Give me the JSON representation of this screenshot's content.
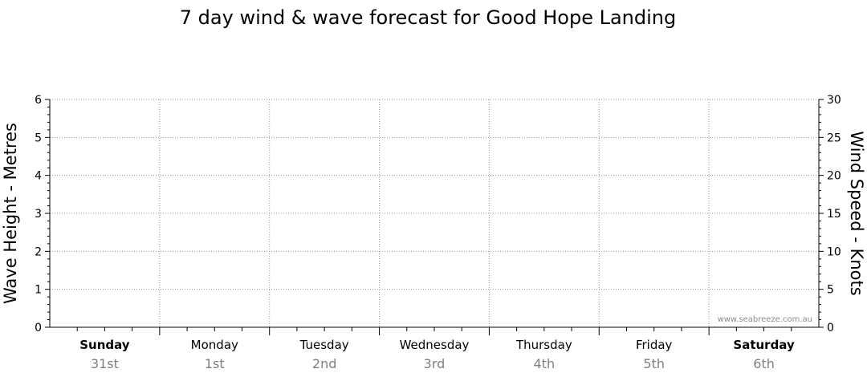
{
  "chart_data": {
    "type": "line",
    "title": "7 day wind & wave forecast for Good Hope Landing",
    "left_axis": {
      "label": "Wave Height - Metres",
      "ylim": [
        0,
        6
      ],
      "ticks": [
        "0",
        "1",
        "2",
        "3",
        "4",
        "5",
        "6"
      ]
    },
    "right_axis": {
      "label": "Wind Speed - Knots",
      "ylim": [
        0,
        30
      ],
      "ticks": [
        "0",
        "5",
        "10",
        "15",
        "20",
        "25",
        "30"
      ]
    },
    "days": [
      {
        "name": "Sunday",
        "date": "31st",
        "bold": true
      },
      {
        "name": "Monday",
        "date": "1st",
        "bold": false
      },
      {
        "name": "Tuesday",
        "date": "2nd",
        "bold": false
      },
      {
        "name": "Wednesday",
        "date": "3rd",
        "bold": false
      },
      {
        "name": "Thursday",
        "date": "4th",
        "bold": false
      },
      {
        "name": "Friday",
        "date": "5th",
        "bold": false
      },
      {
        "name": "Saturday",
        "date": "6th",
        "bold": true
      }
    ],
    "series": [],
    "grid": true
  },
  "watermark": "www.seabreeze.com.au"
}
